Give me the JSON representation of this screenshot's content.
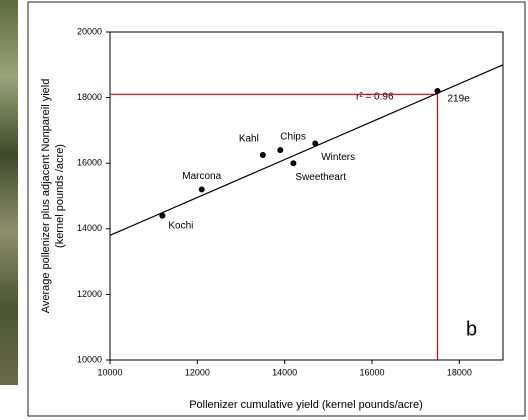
{
  "chart_data": {
    "type": "scatter",
    "point_labels": [
      "Kochi",
      "Marcona",
      "Kahl",
      "Chips",
      "Sweetheart",
      "Winters",
      "219e"
    ],
    "x": [
      11200,
      12100,
      13500,
      13900,
      14200,
      14700,
      17500
    ],
    "values": [
      14400,
      15200,
      16250,
      16400,
      16000,
      16600,
      18200
    ],
    "color": "#000000",
    "fit_line": {
      "x": [
        10000,
        19000
      ],
      "values": [
        13800,
        19000
      ],
      "color": "#000000"
    },
    "reference_lines": {
      "x": 17500,
      "y": 18100,
      "color": "#d40000"
    },
    "xlim": [
      10000,
      19000
    ],
    "ylim": [
      10000,
      20000
    ],
    "xticks": [
      10000,
      12000,
      14000,
      16000,
      18000
    ],
    "yticks": [
      10000,
      12000,
      14000,
      16000,
      18000,
      20000
    ],
    "x_label": "Pollenizer cumulative yield (kernel pounds/acre)",
    "y_label": [
      "Average pollenizer plus adjacent Nonpareil yield",
      "(kernel pounds /acre)"
    ],
    "annotations": [
      "r² = 0.96",
      "b"
    ]
  }
}
